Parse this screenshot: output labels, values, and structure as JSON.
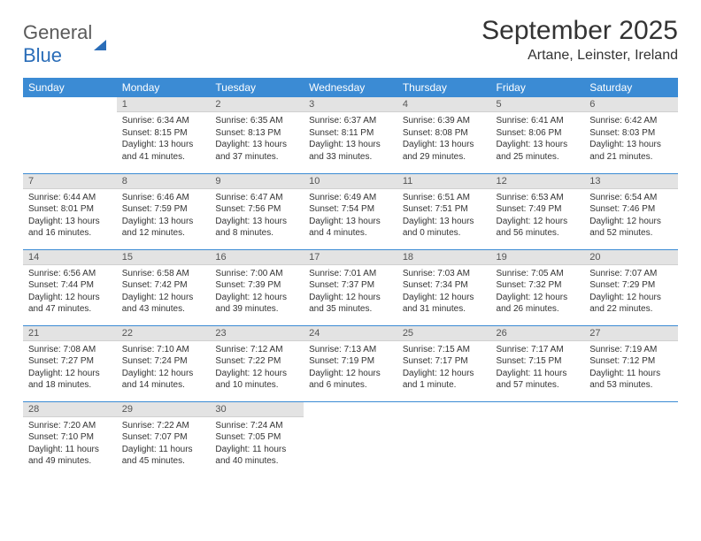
{
  "logo": {
    "part1": "General",
    "part2": "Blue"
  },
  "title": "September 2025",
  "location": "Artane, Leinster, Ireland",
  "weekday_header_bg": "#3b8bd4",
  "daynum_bg": "#e3e3e3",
  "weekdays": [
    "Sunday",
    "Monday",
    "Tuesday",
    "Wednesday",
    "Thursday",
    "Friday",
    "Saturday"
  ],
  "weeks": [
    [
      {
        "n": "",
        "sunrise": "",
        "sunset": "",
        "daylight": ""
      },
      {
        "n": "1",
        "sunrise": "Sunrise: 6:34 AM",
        "sunset": "Sunset: 8:15 PM",
        "daylight": "Daylight: 13 hours and 41 minutes."
      },
      {
        "n": "2",
        "sunrise": "Sunrise: 6:35 AM",
        "sunset": "Sunset: 8:13 PM",
        "daylight": "Daylight: 13 hours and 37 minutes."
      },
      {
        "n": "3",
        "sunrise": "Sunrise: 6:37 AM",
        "sunset": "Sunset: 8:11 PM",
        "daylight": "Daylight: 13 hours and 33 minutes."
      },
      {
        "n": "4",
        "sunrise": "Sunrise: 6:39 AM",
        "sunset": "Sunset: 8:08 PM",
        "daylight": "Daylight: 13 hours and 29 minutes."
      },
      {
        "n": "5",
        "sunrise": "Sunrise: 6:41 AM",
        "sunset": "Sunset: 8:06 PM",
        "daylight": "Daylight: 13 hours and 25 minutes."
      },
      {
        "n": "6",
        "sunrise": "Sunrise: 6:42 AM",
        "sunset": "Sunset: 8:03 PM",
        "daylight": "Daylight: 13 hours and 21 minutes."
      }
    ],
    [
      {
        "n": "7",
        "sunrise": "Sunrise: 6:44 AM",
        "sunset": "Sunset: 8:01 PM",
        "daylight": "Daylight: 13 hours and 16 minutes."
      },
      {
        "n": "8",
        "sunrise": "Sunrise: 6:46 AM",
        "sunset": "Sunset: 7:59 PM",
        "daylight": "Daylight: 13 hours and 12 minutes."
      },
      {
        "n": "9",
        "sunrise": "Sunrise: 6:47 AM",
        "sunset": "Sunset: 7:56 PM",
        "daylight": "Daylight: 13 hours and 8 minutes."
      },
      {
        "n": "10",
        "sunrise": "Sunrise: 6:49 AM",
        "sunset": "Sunset: 7:54 PM",
        "daylight": "Daylight: 13 hours and 4 minutes."
      },
      {
        "n": "11",
        "sunrise": "Sunrise: 6:51 AM",
        "sunset": "Sunset: 7:51 PM",
        "daylight": "Daylight: 13 hours and 0 minutes."
      },
      {
        "n": "12",
        "sunrise": "Sunrise: 6:53 AM",
        "sunset": "Sunset: 7:49 PM",
        "daylight": "Daylight: 12 hours and 56 minutes."
      },
      {
        "n": "13",
        "sunrise": "Sunrise: 6:54 AM",
        "sunset": "Sunset: 7:46 PM",
        "daylight": "Daylight: 12 hours and 52 minutes."
      }
    ],
    [
      {
        "n": "14",
        "sunrise": "Sunrise: 6:56 AM",
        "sunset": "Sunset: 7:44 PM",
        "daylight": "Daylight: 12 hours and 47 minutes."
      },
      {
        "n": "15",
        "sunrise": "Sunrise: 6:58 AM",
        "sunset": "Sunset: 7:42 PM",
        "daylight": "Daylight: 12 hours and 43 minutes."
      },
      {
        "n": "16",
        "sunrise": "Sunrise: 7:00 AM",
        "sunset": "Sunset: 7:39 PM",
        "daylight": "Daylight: 12 hours and 39 minutes."
      },
      {
        "n": "17",
        "sunrise": "Sunrise: 7:01 AM",
        "sunset": "Sunset: 7:37 PM",
        "daylight": "Daylight: 12 hours and 35 minutes."
      },
      {
        "n": "18",
        "sunrise": "Sunrise: 7:03 AM",
        "sunset": "Sunset: 7:34 PM",
        "daylight": "Daylight: 12 hours and 31 minutes."
      },
      {
        "n": "19",
        "sunrise": "Sunrise: 7:05 AM",
        "sunset": "Sunset: 7:32 PM",
        "daylight": "Daylight: 12 hours and 26 minutes."
      },
      {
        "n": "20",
        "sunrise": "Sunrise: 7:07 AM",
        "sunset": "Sunset: 7:29 PM",
        "daylight": "Daylight: 12 hours and 22 minutes."
      }
    ],
    [
      {
        "n": "21",
        "sunrise": "Sunrise: 7:08 AM",
        "sunset": "Sunset: 7:27 PM",
        "daylight": "Daylight: 12 hours and 18 minutes."
      },
      {
        "n": "22",
        "sunrise": "Sunrise: 7:10 AM",
        "sunset": "Sunset: 7:24 PM",
        "daylight": "Daylight: 12 hours and 14 minutes."
      },
      {
        "n": "23",
        "sunrise": "Sunrise: 7:12 AM",
        "sunset": "Sunset: 7:22 PM",
        "daylight": "Daylight: 12 hours and 10 minutes."
      },
      {
        "n": "24",
        "sunrise": "Sunrise: 7:13 AM",
        "sunset": "Sunset: 7:19 PM",
        "daylight": "Daylight: 12 hours and 6 minutes."
      },
      {
        "n": "25",
        "sunrise": "Sunrise: 7:15 AM",
        "sunset": "Sunset: 7:17 PM",
        "daylight": "Daylight: 12 hours and 1 minute."
      },
      {
        "n": "26",
        "sunrise": "Sunrise: 7:17 AM",
        "sunset": "Sunset: 7:15 PM",
        "daylight": "Daylight: 11 hours and 57 minutes."
      },
      {
        "n": "27",
        "sunrise": "Sunrise: 7:19 AM",
        "sunset": "Sunset: 7:12 PM",
        "daylight": "Daylight: 11 hours and 53 minutes."
      }
    ],
    [
      {
        "n": "28",
        "sunrise": "Sunrise: 7:20 AM",
        "sunset": "Sunset: 7:10 PM",
        "daylight": "Daylight: 11 hours and 49 minutes."
      },
      {
        "n": "29",
        "sunrise": "Sunrise: 7:22 AM",
        "sunset": "Sunset: 7:07 PM",
        "daylight": "Daylight: 11 hours and 45 minutes."
      },
      {
        "n": "30",
        "sunrise": "Sunrise: 7:24 AM",
        "sunset": "Sunset: 7:05 PM",
        "daylight": "Daylight: 11 hours and 40 minutes."
      },
      {
        "n": "",
        "sunrise": "",
        "sunset": "",
        "daylight": ""
      },
      {
        "n": "",
        "sunrise": "",
        "sunset": "",
        "daylight": ""
      },
      {
        "n": "",
        "sunrise": "",
        "sunset": "",
        "daylight": ""
      },
      {
        "n": "",
        "sunrise": "",
        "sunset": "",
        "daylight": ""
      }
    ]
  ]
}
